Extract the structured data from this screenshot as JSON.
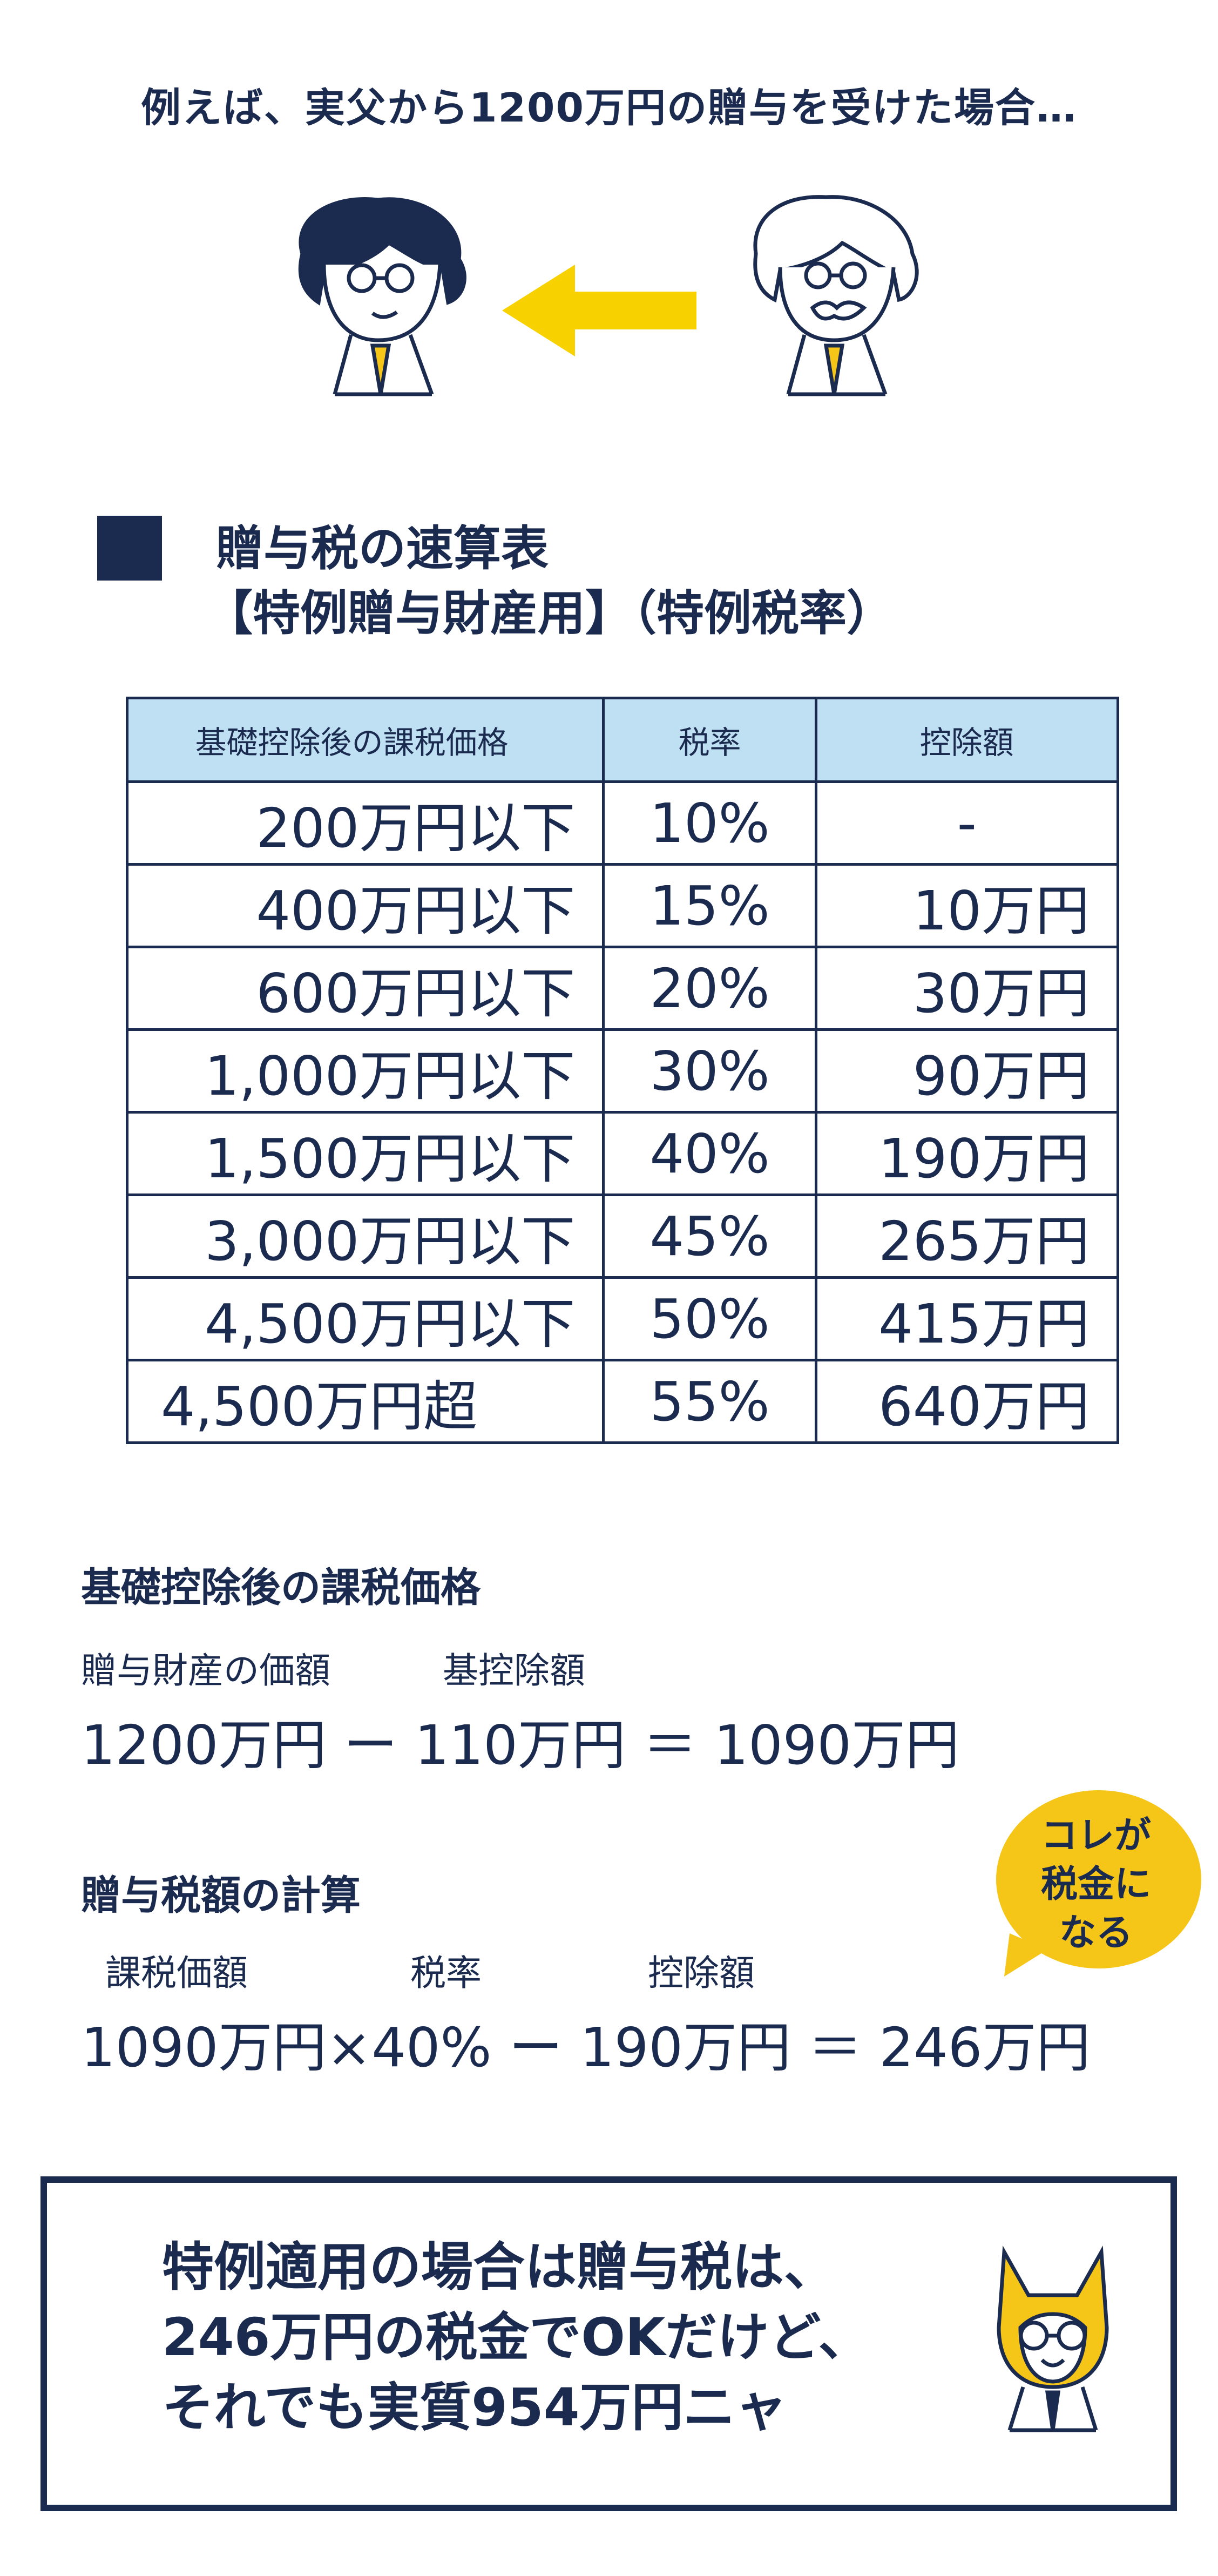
{
  "intro": "例えば、実父から1200万円の贈与を受けた場合…",
  "section": {
    "title_line1": "贈与税の速算表",
    "title_line2": "【特例贈与財産用】（特例税率）"
  },
  "table": {
    "headers": [
      "基礎控除後の課税価格",
      "税率",
      "控除額"
    ],
    "rows": [
      [
        "200万円以下",
        "10%",
        "-"
      ],
      [
        "400万円以下",
        "15%",
        "10万円"
      ],
      [
        "600万円以下",
        "20%",
        "30万円"
      ],
      [
        "1,000万円以下",
        "30%",
        "90万円"
      ],
      [
        "1,500万円以下",
        "40%",
        "190万円"
      ],
      [
        "3,000万円以下",
        "45%",
        "265万円"
      ],
      [
        "4,500万円以下",
        "50%",
        "415万円"
      ],
      [
        "4,500万円超",
        "55%",
        "640万円"
      ]
    ]
  },
  "calc1": {
    "heading": "基礎控除後の課税価格",
    "label_a": "贈与財産の価額",
    "label_b": "基控除額",
    "equation": "1200万円 ー 110万円 ＝ 1090万円"
  },
  "calc2": {
    "heading": "贈与税額の計算",
    "label_a": "課税価額",
    "label_b": "税率",
    "label_c": "控除額",
    "equation": "1090万円×40% ー 190万円 ＝ 246万円"
  },
  "bubble": {
    "line1": "コレが",
    "line2": "税金に",
    "line3": "なる"
  },
  "note": {
    "line1": "特例適用の場合は贈与税は、",
    "line2": "246万円の税金でOKだけど、",
    "line3": "それでも実質954万円ニャ"
  },
  "colors": {
    "navy": "#1b2b4f",
    "yellow": "#f5c518",
    "header_bg": "#bfe0f3"
  }
}
